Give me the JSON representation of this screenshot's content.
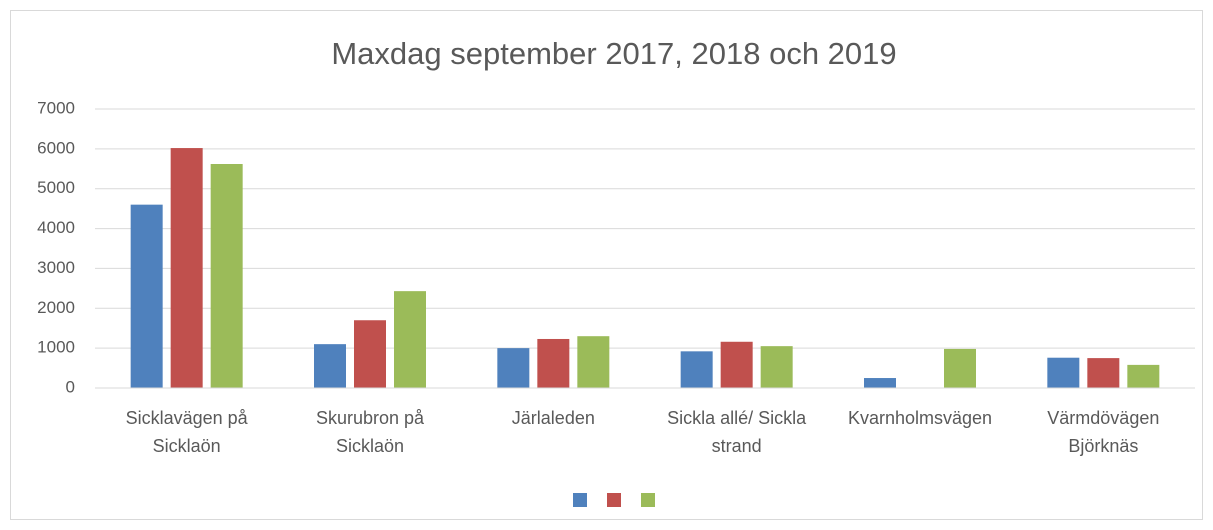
{
  "chart_data": {
    "type": "bar",
    "title": "Maxdag september 2017, 2018 och 2019",
    "categories": [
      "Sicklavägen på Sicklaön",
      "Skurubron på Sicklaön",
      "Järlaleden",
      "Sickla allé/ Sickla strand",
      "Kvarnholmsvägen",
      "Värmdövägen Björknäs"
    ],
    "series": [
      {
        "color": "#4f81bd",
        "values": [
          4600,
          1100,
          1000,
          920,
          250,
          760
        ]
      },
      {
        "color": "#c0504d",
        "values": [
          6020,
          1700,
          1230,
          1160,
          null,
          750
        ]
      },
      {
        "color": "#9bbb59",
        "values": [
          5620,
          2430,
          1300,
          1050,
          980,
          580
        ]
      }
    ],
    "ylim": [
      0,
      7000
    ],
    "yticks": [
      0,
      1000,
      2000,
      3000,
      4000,
      5000,
      6000,
      7000
    ],
    "grid": true,
    "legend": "bottom"
  }
}
